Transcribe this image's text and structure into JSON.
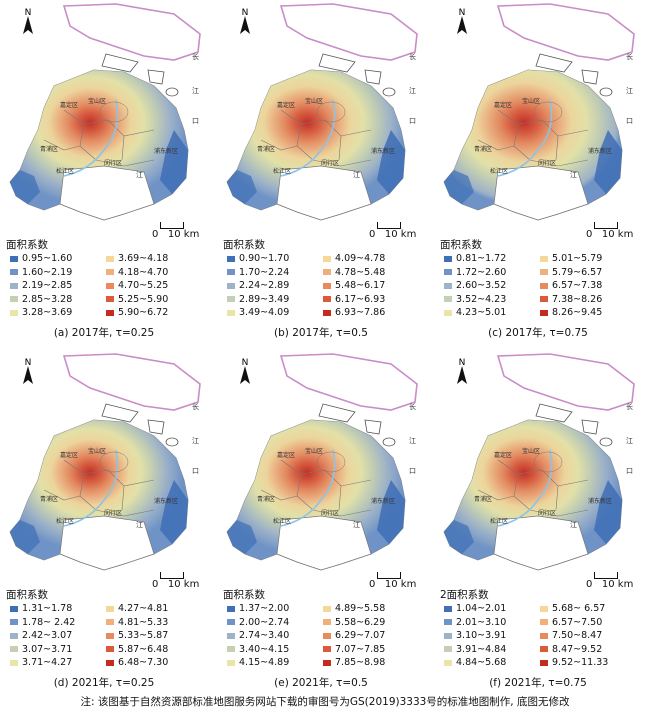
{
  "legend_title": "面积系数",
  "scale_label": "0   10 km",
  "north_label": "N",
  "map_labels": [
    "长",
    "江",
    "口",
    "江",
    "浦东新区",
    "闵行区",
    "松江区",
    "嘉定区",
    "宝山区",
    "青浦区"
  ],
  "palette": [
    "#3f6fb5",
    "#6f93c6",
    "#9fb3c8",
    "#c4cfb3",
    "#e8e5a6",
    "#f3d89a",
    "#f0b07c",
    "#e98a5c",
    "#dc5a3a",
    "#c62b20"
  ],
  "panels": [
    {
      "caption": "(a) 2017年, τ=0.25",
      "legend_title": "面积系数",
      "ranges": [
        "0.95~1.60",
        "1.60~2.19",
        "2.19~2.85",
        "2.85~3.28",
        "3.28~3.69",
        "3.69~4.18",
        "4.18~4.70",
        "4.70~5.25",
        "5.25~5.90",
        "5.90~6.72"
      ]
    },
    {
      "caption": "(b) 2017年, τ=0.5",
      "legend_title": "面积系数",
      "ranges": [
        "0.90~1.70",
        "1.70~2.24",
        "2.24~2.89",
        "2.89~3.49",
        "3.49~4.09",
        "4.09~4.78",
        "4.78~5.48",
        "5.48~6.17",
        "6.17~6.93",
        "6.93~7.86"
      ]
    },
    {
      "caption": "(c) 2017年, τ=0.75",
      "legend_title": "面积系数",
      "ranges": [
        "0.81~1.72",
        "1.72~2.60",
        "2.60~3.52",
        "3.52~4.23",
        "4.23~5.01",
        "5.01~5.79",
        "5.79~6.57",
        "6.57~7.38",
        "7.38~8.26",
        "8.26~9.45"
      ]
    },
    {
      "caption": "(d) 2021年, τ=0.25",
      "legend_title": "面积系数",
      "ranges": [
        "1.31~1.78",
        "1.78~ 2.42",
        "2.42~3.07",
        "3.07~3.71",
        "3.71~4.27",
        "4.27~4.81",
        "4.81~5.33",
        "5.33~5.87",
        "5.87~6.48",
        "6.48~7.30"
      ]
    },
    {
      "caption": "(e) 2021年, τ=0.5",
      "legend_title": "面积系数",
      "ranges": [
        "1.37~2.00",
        "2.00~2.74",
        "2.74~3.40",
        "3.40~4.15",
        "4.15~4.89",
        "4.89~5.58",
        "5.58~6.29",
        "6.29~7.07",
        "7.07~7.85",
        "7.85~8.98"
      ]
    },
    {
      "caption": "(f) 2021年, τ=0.75",
      "legend_title": "2面积系数",
      "ranges": [
        "1.04~2.01",
        "2.01~3.10",
        "3.10~3.91",
        "3.91~4.84",
        "4.84~5.68",
        "5.68~ 6.57",
        "6.57~7.50",
        "7.50~8.47",
        "8.47~9.52",
        "9.52~11.33"
      ]
    }
  ],
  "note": "注: 该图基于自然资源部标准地图服务网站下载的审图号为GS(2019)3333号的标准地图制作, 底图无修改"
}
